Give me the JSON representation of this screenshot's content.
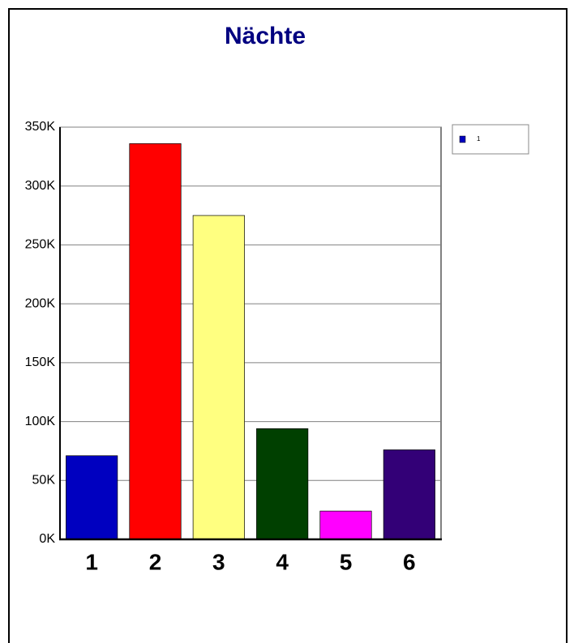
{
  "chart_data": {
    "type": "bar",
    "title": "Nächte",
    "categories": [
      "1",
      "2",
      "3",
      "4",
      "5",
      "6"
    ],
    "series": [
      {
        "name": "1",
        "values": [
          71000,
          336000,
          275000,
          94000,
          24000,
          76000
        ],
        "colors": [
          "#0000c0",
          "#ff0000",
          "#ffff80",
          "#004000",
          "#ff00ff",
          "#330077"
        ]
      }
    ],
    "ylim": [
      0,
      350000
    ],
    "yticks": [
      {
        "value": 0,
        "label": "0K"
      },
      {
        "value": 50000,
        "label": "50K"
      },
      {
        "value": 100000,
        "label": "100K"
      },
      {
        "value": 150000,
        "label": "150K"
      },
      {
        "value": 200000,
        "label": "200K"
      },
      {
        "value": 250000,
        "label": "250K"
      },
      {
        "value": 300000,
        "label": "300K"
      },
      {
        "value": 350000,
        "label": "350K"
      }
    ],
    "grid": true,
    "legend": "right"
  }
}
